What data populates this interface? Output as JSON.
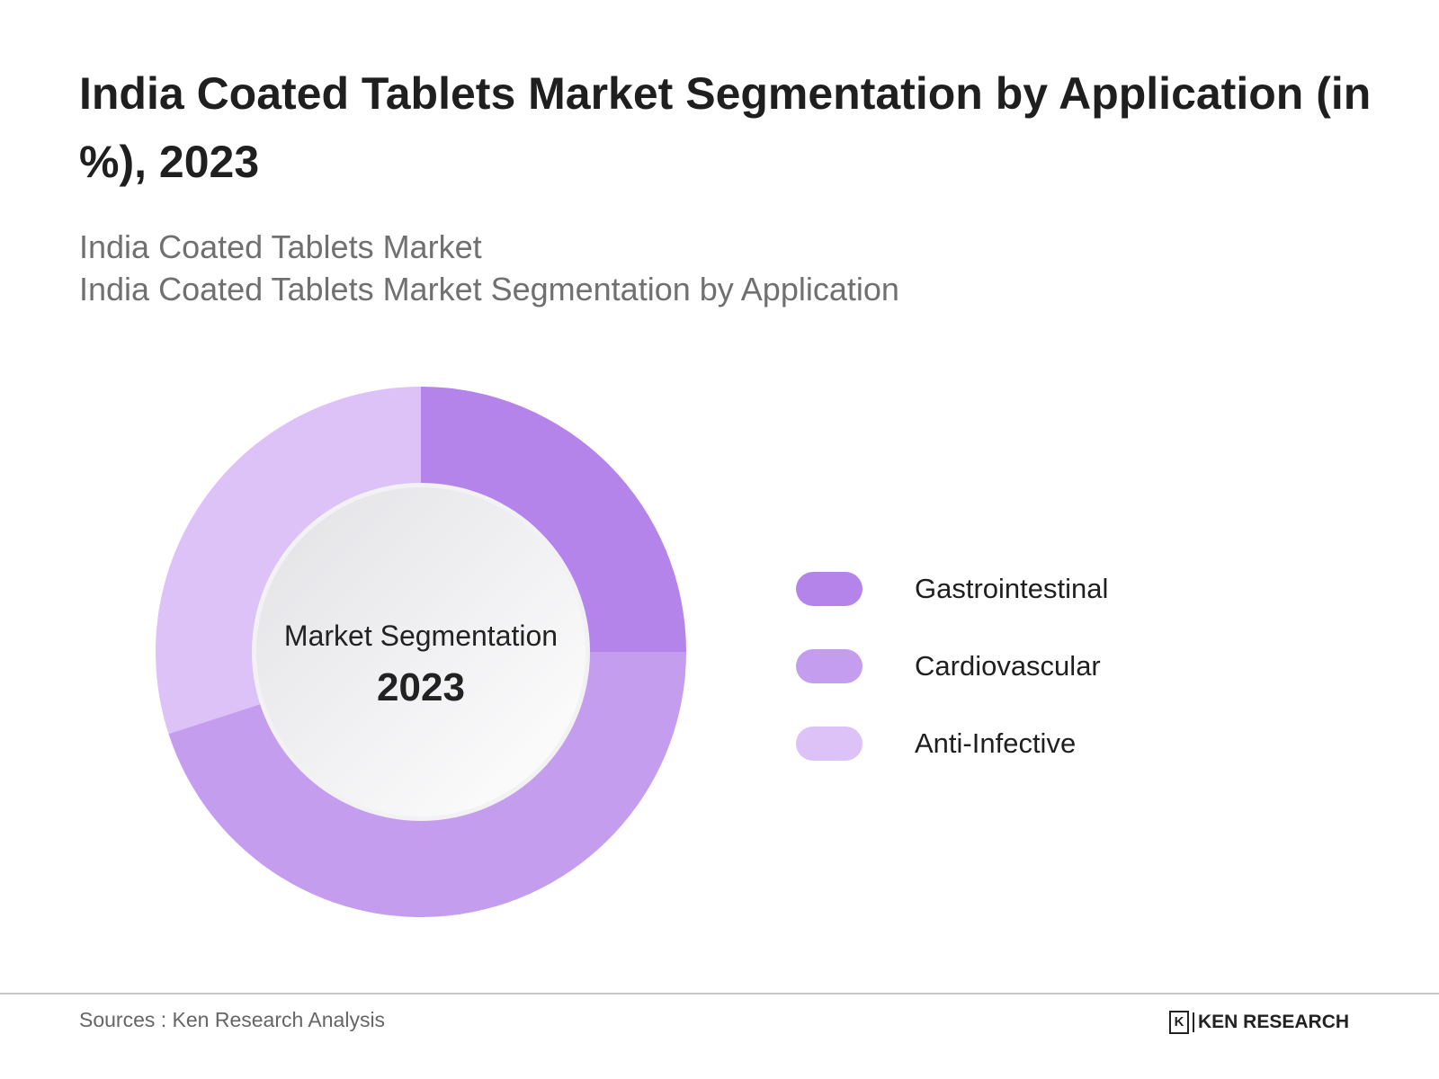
{
  "title": "India Coated Tablets Market Segmentation by Application (in %), 2023",
  "subtitle_lines": [
    "India Coated Tablets Market",
    "India Coated Tablets Market Segmentation by Application"
  ],
  "center_label": "Market Segmentation",
  "center_year": "2023",
  "footer": {
    "source": "Sources : Ken Research Analysis",
    "logo_text": "KEN RESEARCH"
  },
  "chart_data": {
    "type": "pie",
    "variant": "donut",
    "title": "India Coated Tablets Market Segmentation by Application (in %), 2023",
    "categories": [
      "Gastrointestinal",
      "Cardiovascular",
      "Anti-Infective"
    ],
    "values": [
      25,
      45,
      30
    ],
    "unit": "%",
    "colors": [
      "#b584ea",
      "#c59dee",
      "#dcc2f6"
    ],
    "legend_position": "right"
  }
}
